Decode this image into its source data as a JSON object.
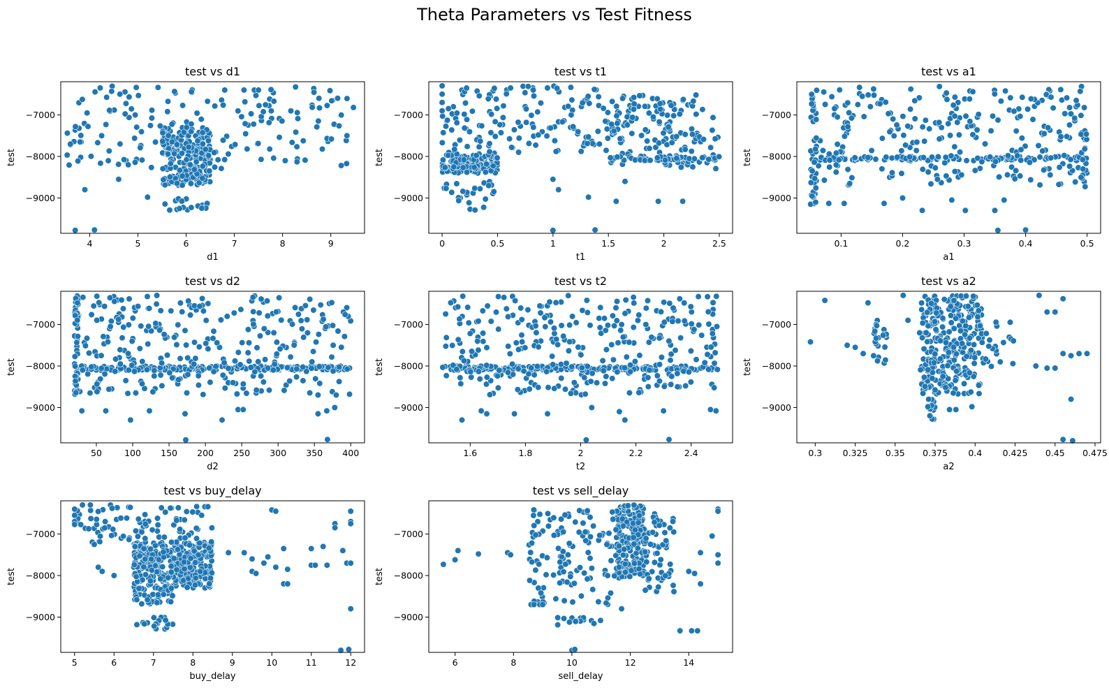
{
  "figure": {
    "title": "Theta Parameters vs Test Fitness",
    "point_color": "#1f77b4"
  },
  "chart_data": [
    {
      "type": "scatter",
      "title": "test vs d1",
      "xlabel": "d1",
      "ylabel": "test",
      "xlim": [
        3.4,
        9.7
      ],
      "ylim": [
        -9850,
        -6200
      ],
      "xticks": [
        4,
        5,
        6,
        7,
        8,
        9
      ],
      "yticks": [
        -9000,
        -8000,
        -7000
      ],
      "clusters": [
        {
          "x": [
            5.5,
            6.5
          ],
          "y": [
            -8700,
            -7300
          ],
          "n": 230
        },
        {
          "x": [
            3.5,
            9.5
          ],
          "y": [
            -8300,
            -6300
          ],
          "n": 170
        },
        {
          "x": [
            5.5,
            6.5
          ],
          "y": [
            -9300,
            -9000
          ],
          "n": 18
        }
      ],
      "points": [
        [
          3.7,
          -9780
        ],
        [
          4.1,
          -9770
        ],
        [
          3.9,
          -8800
        ],
        [
          4.6,
          -8550
        ],
        [
          5.2,
          -8980
        ],
        [
          8.3,
          -8130
        ],
        [
          4.8,
          -8200
        ],
        [
          6.8,
          -6400
        ],
        [
          7.2,
          -6400
        ],
        [
          7.5,
          -6400
        ],
        [
          3.6,
          -7700
        ],
        [
          3.8,
          -7650
        ]
      ]
    },
    {
      "type": "scatter",
      "title": "test vs t1",
      "xlabel": "t1",
      "ylabel": "test",
      "xlim": [
        -0.12,
        2.62
      ],
      "ylim": [
        -9850,
        -6200
      ],
      "xticks": [
        0.0,
        0.5,
        1.0,
        1.5,
        2.0,
        2.5
      ],
      "yticks": [
        -9000,
        -8000,
        -7000
      ],
      "clusters": [
        {
          "x": [
            0.0,
            0.5
          ],
          "y": [
            -8400,
            -7900
          ],
          "n": 130
        },
        {
          "x": [
            0.0,
            0.5
          ],
          "y": [
            -9300,
            -8600
          ],
          "n": 25
        },
        {
          "x": [
            0.0,
            1.5
          ],
          "y": [
            -7900,
            -6300
          ],
          "n": 140
        },
        {
          "x": [
            1.5,
            2.5
          ],
          "y": [
            -8300,
            -6500
          ],
          "n": 150
        },
        {
          "x": [
            1.5,
            2.5
          ],
          "y": [
            -8100,
            -8000
          ],
          "n": 45
        }
      ],
      "points": [
        [
          1.0,
          -9780
        ],
        [
          1.38,
          -9770
        ],
        [
          1.0,
          -8550
        ],
        [
          1.32,
          -8980
        ],
        [
          1.05,
          -8800
        ],
        [
          1.57,
          -9080
        ],
        [
          1.95,
          -9080
        ],
        [
          2.17,
          -9080
        ],
        [
          1.65,
          -8600
        ],
        [
          0.0,
          -6300
        ],
        [
          0.0,
          -6500
        ],
        [
          0.0,
          -6700
        ],
        [
          0.0,
          -6900
        ]
      ]
    },
    {
      "type": "scatter",
      "title": "test vs a1",
      "xlabel": "a1",
      "ylabel": "test",
      "xlim": [
        0.028,
        0.522
      ],
      "ylim": [
        -9850,
        -6200
      ],
      "xticks": [
        0.1,
        0.2,
        0.3,
        0.4,
        0.5
      ],
      "yticks": [
        -9000,
        -8000,
        -7000
      ],
      "clusters": [
        {
          "x": [
            0.05,
            0.5
          ],
          "y": [
            -8100,
            -8000
          ],
          "n": 110
        },
        {
          "x": [
            0.05,
            0.5
          ],
          "y": [
            -8700,
            -6300
          ],
          "n": 260
        },
        {
          "x": [
            0.05,
            0.06
          ],
          "y": [
            -9150,
            -6300
          ],
          "n": 35
        },
        {
          "x": [
            0.49,
            0.5
          ],
          "y": [
            -8800,
            -6700
          ],
          "n": 18
        }
      ],
      "points": [
        [
          0.355,
          -9780
        ],
        [
          0.4,
          -9770
        ],
        [
          0.35,
          -9300
        ],
        [
          0.232,
          -9300
        ],
        [
          0.302,
          -9300
        ],
        [
          0.08,
          -9130
        ],
        [
          0.105,
          -9130
        ],
        [
          0.17,
          -9130
        ],
        [
          0.2,
          -9000
        ],
        [
          0.365,
          -9050
        ],
        [
          0.28,
          -9050
        ]
      ]
    },
    {
      "type": "scatter",
      "title": "test vs d2",
      "xlabel": "d2",
      "ylabel": "test",
      "xlim": [
        1,
        419
      ],
      "ylim": [
        -9850,
        -6200
      ],
      "xticks": [
        50,
        100,
        150,
        200,
        250,
        300,
        350,
        400
      ],
      "yticks": [
        -9000,
        -8000,
        -7000
      ],
      "clusters": [
        {
          "x": [
            20,
            400
          ],
          "y": [
            -8100,
            -8000
          ],
          "n": 170
        },
        {
          "x": [
            20,
            400
          ],
          "y": [
            -8700,
            -6300
          ],
          "n": 300
        },
        {
          "x": [
            20,
            25
          ],
          "y": [
            -8700,
            -6300
          ],
          "n": 40
        }
      ],
      "points": [
        [
          173,
          -9780
        ],
        [
          368,
          -9770
        ],
        [
          30,
          -9080
        ],
        [
          63,
          -9080
        ],
        [
          97,
          -9300
        ],
        [
          123,
          -9080
        ],
        [
          172,
          -9150
        ],
        [
          223,
          -9300
        ],
        [
          245,
          -9050
        ],
        [
          252,
          -9050
        ],
        [
          355,
          -9150
        ],
        [
          367,
          -9080
        ],
        [
          378,
          -9000
        ],
        [
          380,
          -8700
        ]
      ]
    },
    {
      "type": "scatter",
      "title": "test vs t2",
      "xlabel": "t2",
      "ylabel": "test",
      "xlim": [
        1.45,
        2.55
      ],
      "ylim": [
        -9850,
        -6200
      ],
      "xticks": [
        1.6,
        1.8,
        2.0,
        2.2,
        2.4
      ],
      "yticks": [
        -9000,
        -8000,
        -7000
      ],
      "clusters": [
        {
          "x": [
            1.5,
            2.5
          ],
          "y": [
            -8100,
            -8000
          ],
          "n": 180
        },
        {
          "x": [
            1.5,
            2.5
          ],
          "y": [
            -8700,
            -6300
          ],
          "n": 310
        }
      ],
      "points": [
        [
          2.02,
          -9780
        ],
        [
          2.32,
          -9770
        ],
        [
          1.57,
          -9300
        ],
        [
          1.66,
          -9150
        ],
        [
          1.76,
          -9150
        ],
        [
          1.88,
          -9150
        ],
        [
          2.04,
          -9000
        ],
        [
          2.14,
          -9100
        ],
        [
          2.16,
          -9300
        ],
        [
          2.3,
          -9080
        ],
        [
          2.47,
          -9050
        ],
        [
          2.49,
          -9080
        ],
        [
          1.64,
          -9080
        ]
      ]
    },
    {
      "type": "scatter",
      "title": "test vs a2",
      "xlabel": "a2",
      "ylabel": "test",
      "xlim": [
        0.2885,
        0.4785
      ],
      "ylim": [
        -9850,
        -6200
      ],
      "xticks": [
        0.3,
        0.325,
        0.35,
        0.375,
        0.4,
        0.425,
        0.45,
        0.475
      ],
      "yticks": [
        -9000,
        -8000,
        -7000
      ],
      "clusters": [
        {
          "x": [
            0.365,
            0.405
          ],
          "y": [
            -8700,
            -6300
          ],
          "n": 300
        },
        {
          "x": [
            0.37,
            0.375
          ],
          "y": [
            -9300,
            -8800
          ],
          "n": 12
        },
        {
          "x": [
            0.336,
            0.345
          ],
          "y": [
            -8000,
            -6900
          ],
          "n": 25
        },
        {
          "x": [
            0.405,
            0.425
          ],
          "y": [
            -8100,
            -6900
          ],
          "n": 20
        }
      ],
      "points": [
        [
          0.297,
          -7420
        ],
        [
          0.306,
          -6420
        ],
        [
          0.32,
          -7500
        ],
        [
          0.325,
          -7550
        ],
        [
          0.33,
          -7700
        ],
        [
          0.333,
          -6480
        ],
        [
          0.355,
          -6300
        ],
        [
          0.358,
          -6900
        ],
        [
          0.44,
          -6300
        ],
        [
          0.445,
          -6700
        ],
        [
          0.45,
          -6700
        ],
        [
          0.455,
          -6380
        ],
        [
          0.438,
          -8000
        ],
        [
          0.445,
          -8050
        ],
        [
          0.45,
          -8050
        ],
        [
          0.455,
          -7700
        ],
        [
          0.46,
          -7750
        ],
        [
          0.465,
          -7700
        ],
        [
          0.47,
          -7700
        ],
        [
          0.46,
          -8800
        ],
        [
          0.455,
          -9770
        ],
        [
          0.461,
          -9800
        ],
        [
          0.384,
          -9050
        ],
        [
          0.388,
          -9050
        ],
        [
          0.398,
          -8980
        ]
      ]
    },
    {
      "type": "scatter",
      "title": "test vs buy_delay",
      "xlabel": "buy_delay",
      "ylabel": "test",
      "xlim": [
        4.65,
        12.35
      ],
      "ylim": [
        -9850,
        -6200
      ],
      "xticks": [
        5,
        6,
        7,
        8,
        9,
        10,
        11,
        12
      ],
      "yticks": [
        -9000,
        -8000,
        -7000
      ],
      "clusters": [
        {
          "x": [
            6.5,
            8.5
          ],
          "y": [
            -8300,
            -7200
          ],
          "n": 330
        },
        {
          "x": [
            6.5,
            7.5
          ],
          "y": [
            -8700,
            -8300
          ],
          "n": 40
        },
        {
          "x": [
            6.5,
            7.5
          ],
          "y": [
            -9300,
            -9000
          ],
          "n": 18
        },
        {
          "x": [
            5.0,
            8.5
          ],
          "y": [
            -7200,
            -6300
          ],
          "n": 90
        }
      ],
      "points": [
        [
          5.0,
          -6400
        ],
        [
          5.0,
          -6550
        ],
        [
          5.0,
          -6700
        ],
        [
          5.0,
          -6770
        ],
        [
          5.2,
          -6300
        ],
        [
          5.4,
          -6300
        ],
        [
          5.5,
          -7250
        ],
        [
          5.6,
          -7800
        ],
        [
          5.7,
          -7900
        ],
        [
          6.0,
          -8000
        ],
        [
          8.9,
          -7450
        ],
        [
          9.3,
          -7450
        ],
        [
          9.5,
          -7600
        ],
        [
          9.5,
          -7900
        ],
        [
          9.6,
          -7950
        ],
        [
          9.8,
          -7700
        ],
        [
          9.9,
          -7550
        ],
        [
          10.0,
          -6420
        ],
        [
          10.1,
          -6450
        ],
        [
          10.1,
          -7800
        ],
        [
          10.3,
          -7350
        ],
        [
          10.3,
          -8200
        ],
        [
          10.4,
          -7850
        ],
        [
          10.4,
          -8200
        ],
        [
          11.0,
          -7350
        ],
        [
          11.0,
          -7750
        ],
        [
          11.1,
          -7750
        ],
        [
          11.3,
          -7300
        ],
        [
          11.4,
          -7750
        ],
        [
          11.6,
          -6750
        ],
        [
          11.6,
          -6850
        ],
        [
          11.8,
          -7400
        ],
        [
          11.9,
          -7700
        ],
        [
          12.0,
          -6450
        ],
        [
          12.0,
          -6700
        ],
        [
          12.0,
          -6750
        ],
        [
          12.0,
          -7700
        ],
        [
          12.0,
          -8800
        ],
        [
          11.75,
          -9800
        ],
        [
          11.95,
          -9780
        ]
      ]
    },
    {
      "type": "scatter",
      "title": "test vs sell_delay",
      "xlabel": "sell_delay",
      "ylabel": "test",
      "xlim": [
        5.1,
        15.5
      ],
      "ylim": [
        -9850,
        -6200
      ],
      "xticks": [
        6,
        8,
        10,
        12,
        14
      ],
      "yticks": [
        -9000,
        -8000,
        -7000
      ],
      "clusters": [
        {
          "x": [
            11.5,
            12.5
          ],
          "y": [
            -8100,
            -6300
          ],
          "n": 200
        },
        {
          "x": [
            8.5,
            11.5
          ],
          "y": [
            -8700,
            -6400
          ],
          "n": 120
        },
        {
          "x": [
            12.5,
            13.5
          ],
          "y": [
            -8400,
            -6500
          ],
          "n": 60
        },
        {
          "x": [
            9.5,
            11.0
          ],
          "y": [
            -9200,
            -9000
          ],
          "n": 15
        }
      ],
      "points": [
        [
          5.6,
          -7730
        ],
        [
          6.0,
          -7620
        ],
        [
          6.1,
          -7400
        ],
        [
          6.8,
          -7480
        ],
        [
          7.8,
          -7450
        ],
        [
          7.9,
          -7500
        ],
        [
          8.6,
          -8700
        ],
        [
          8.7,
          -8700
        ],
        [
          8.9,
          -8700
        ],
        [
          9.0,
          -8700
        ],
        [
          10.0,
          -9800
        ],
        [
          10.1,
          -9780
        ],
        [
          11.7,
          -8800
        ],
        [
          13.7,
          -9330
        ],
        [
          14.1,
          -9330
        ],
        [
          14.3,
          -9330
        ],
        [
          14.0,
          -7900
        ],
        [
          14.2,
          -7950
        ],
        [
          14.4,
          -7450
        ],
        [
          14.4,
          -8200
        ],
        [
          14.8,
          -7050
        ],
        [
          15.0,
          -6400
        ],
        [
          15.0,
          -6450
        ],
        [
          15.0,
          -7500
        ],
        [
          15.0,
          -7700
        ]
      ]
    }
  ]
}
